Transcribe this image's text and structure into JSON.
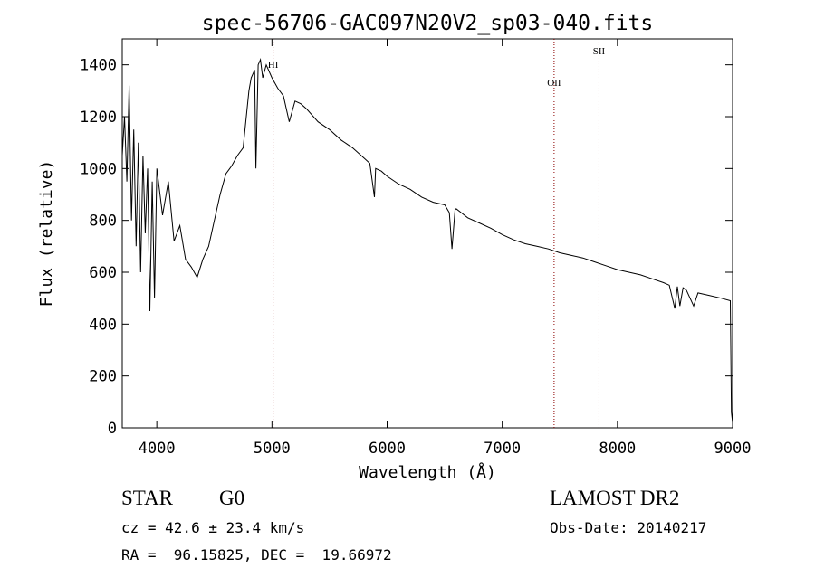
{
  "chart_data": {
    "type": "line",
    "title": "spec-56706-GAC097N20V2_sp03-040.fits",
    "xlabel": "Wavelength (Å)",
    "ylabel": "Flux (relative)",
    "xlim": [
      3700,
      9000
    ],
    "ylim": [
      0,
      1500
    ],
    "xticks": [
      4000,
      5000,
      6000,
      7000,
      8000,
      9000
    ],
    "yticks": [
      0,
      200,
      400,
      600,
      800,
      1000,
      1200,
      1400
    ],
    "grid": false,
    "line_color": "#000000",
    "marker_color": "#8b0000",
    "series": [
      {
        "x": [
          3700,
          3720,
          3740,
          3760,
          3780,
          3800,
          3820,
          3840,
          3860,
          3880,
          3900,
          3920,
          3940,
          3960,
          3980,
          4000,
          4050,
          4100,
          4150,
          4200,
          4250,
          4300,
          4350,
          4400,
          4450,
          4500,
          4550,
          4600,
          4650,
          4700,
          4750,
          4800,
          4820,
          4850,
          4861,
          4880,
          4900,
          4920,
          4950,
          5000,
          5050,
          5100,
          5150,
          5200,
          5250,
          5300,
          5400,
          5500,
          5600,
          5700,
          5800,
          5850,
          5890,
          5900,
          5950,
          6000,
          6100,
          6200,
          6300,
          6400,
          6500,
          6540,
          6563,
          6590,
          6600,
          6700,
          6800,
          6900,
          7000,
          7100,
          7200,
          7300,
          7400,
          7500,
          7600,
          7700,
          7800,
          7900,
          8000,
          8100,
          8200,
          8300,
          8400,
          8450,
          8498,
          8520,
          8542,
          8570,
          8600,
          8662,
          8700,
          8800,
          8900,
          8980,
          8990,
          9000
        ],
        "y": [
          1050,
          1200,
          950,
          1320,
          800,
          1150,
          700,
          1100,
          600,
          1050,
          750,
          1000,
          450,
          950,
          500,
          1000,
          820,
          950,
          720,
          780,
          650,
          620,
          580,
          650,
          700,
          800,
          900,
          980,
          1010,
          1050,
          1080,
          1300,
          1350,
          1380,
          1000,
          1400,
          1420,
          1350,
          1400,
          1350,
          1310,
          1280,
          1180,
          1260,
          1250,
          1230,
          1180,
          1150,
          1110,
          1080,
          1040,
          1020,
          890,
          1000,
          990,
          970,
          940,
          920,
          890,
          870,
          860,
          830,
          690,
          840,
          845,
          810,
          790,
          770,
          745,
          725,
          710,
          700,
          690,
          675,
          665,
          655,
          640,
          625,
          610,
          600,
          590,
          575,
          560,
          550,
          460,
          545,
          470,
          540,
          530,
          470,
          520,
          510,
          500,
          490,
          60,
          20
        ]
      }
    ],
    "line_markers": [
      {
        "label": "HI",
        "x": 5010
      },
      {
        "label": "OII",
        "x": 7450
      },
      {
        "label": "SII",
        "x": 7840
      }
    ]
  },
  "info": {
    "object_class": "STAR",
    "subclass": "G0",
    "survey": "LAMOST DR2",
    "cz": "cz = 42.6 ± 23.4 km/s",
    "obs_date": "Obs-Date: 20140217",
    "coords": "RA =  96.15825, DEC =  19.66972"
  }
}
